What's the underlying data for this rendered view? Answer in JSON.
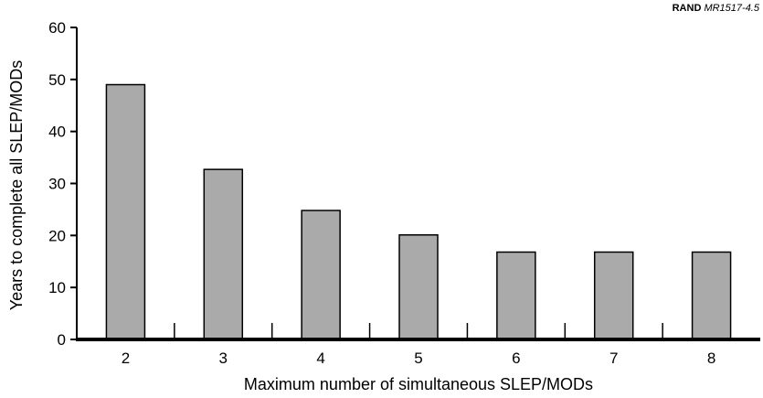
{
  "source_tag": {
    "org": "RAND",
    "id": "MR1517-4.5"
  },
  "chart_data": {
    "type": "bar",
    "categories": [
      "2",
      "3",
      "4",
      "5",
      "6",
      "7",
      "8"
    ],
    "values": [
      49,
      32.7,
      24.8,
      20.1,
      16.8,
      16.8,
      16.8
    ],
    "xlabel": "Maximum number of simultaneous SLEP/MODs",
    "ylabel": "Years to complete all SLEP/MODs",
    "ylim": [
      0,
      60
    ],
    "yticks": [
      0,
      10,
      20,
      30,
      40,
      50,
      60
    ],
    "grid": false,
    "bar_color": "#aaaaaa"
  }
}
